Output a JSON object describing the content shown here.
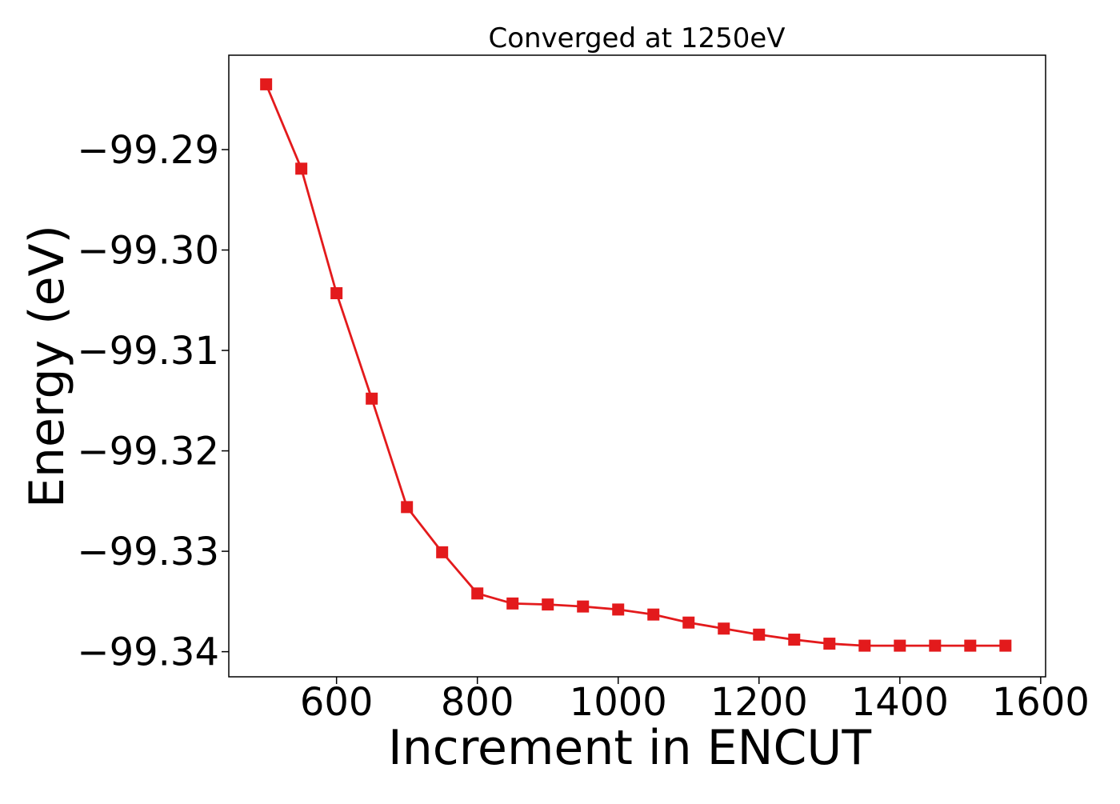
{
  "chart_data": {
    "type": "line",
    "title": "Converged at 1250eV",
    "xlabel": "Increment in ENCUT",
    "ylabel": "Energy (eV)",
    "xlim": [
      447,
      1607
    ],
    "ylim": [
      -99.3425,
      -99.2806
    ],
    "x_ticks": [
      600,
      800,
      1000,
      1200,
      1400,
      1600
    ],
    "x_tick_labels": [
      "600",
      "800",
      "1000",
      "1200",
      "1400",
      "1600"
    ],
    "y_ticks": [
      -99.29,
      -99.3,
      -99.31,
      -99.32,
      -99.33,
      -99.34
    ],
    "y_tick_labels": [
      "−99.29",
      "−99.30",
      "−99.31",
      "−99.32",
      "−99.33",
      "−99.34"
    ],
    "grid": false,
    "series": [
      {
        "color": "#e31a1c",
        "marker": "square",
        "x": [
          500,
          550,
          600,
          650,
          700,
          750,
          800,
          850,
          900,
          950,
          1000,
          1050,
          1100,
          1150,
          1200,
          1250,
          1300,
          1350,
          1400,
          1450,
          1500,
          1550
        ],
        "y": [
          -99.2835,
          -99.2919,
          -99.3043,
          -99.3148,
          -99.3256,
          -99.3301,
          -99.3342,
          -99.3352,
          -99.3353,
          -99.3355,
          -99.3358,
          -99.3363,
          -99.3371,
          -99.3377,
          -99.3383,
          -99.3388,
          -99.3392,
          -99.3394,
          -99.3394,
          -99.3394,
          -99.3394,
          -99.3394
        ]
      }
    ]
  }
}
